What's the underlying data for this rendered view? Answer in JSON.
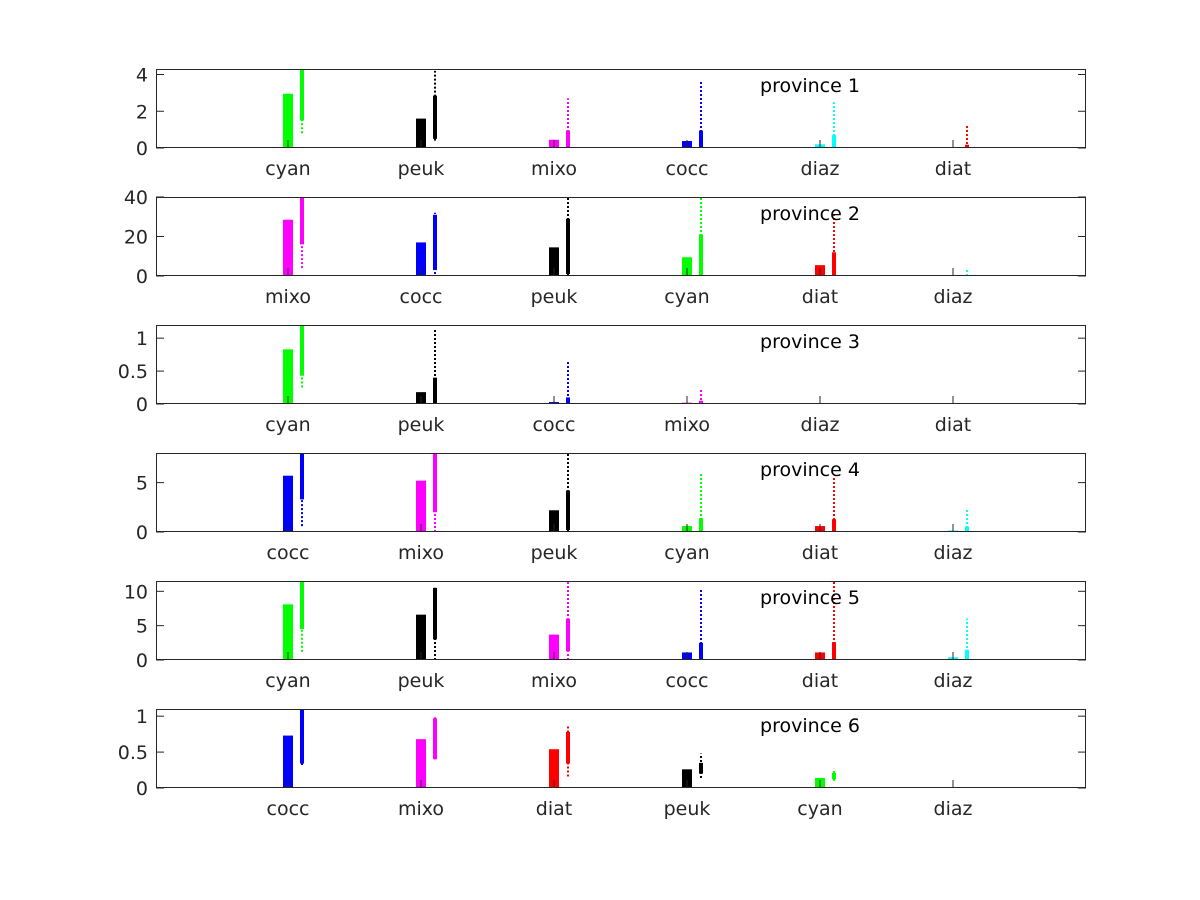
{
  "colors": {
    "cocc": "#0000ff",
    "mixo": "#ff00ff",
    "peuk": "#000000",
    "cyan": "#00ff00",
    "diat": "#ff0000",
    "diaz": "#00ffff"
  },
  "chart_data": [
    {
      "type": "bar",
      "title": "province 1",
      "ylim": [
        0,
        4.3
      ],
      "yticks": [
        "0",
        "2",
        "4"
      ],
      "ytick_values": [
        0,
        2,
        4
      ],
      "categories": [
        "cyan",
        "peuk",
        "mixo",
        "cocc",
        "diaz",
        "diat"
      ],
      "values": [
        2.95,
        1.6,
        0.45,
        0.38,
        0.2,
        0.04
      ],
      "ranges": [
        {
          "mean": 4.3,
          "q_low": 1.5,
          "q_high": 4.3,
          "min": 0.8,
          "max": 4.3
        },
        {
          "mean": 2.85,
          "q_low": 0.5,
          "q_high": 2.85,
          "min": 0.4,
          "max": 4.2
        },
        {
          "mean": 0.95,
          "q_low": 0.05,
          "q_high": 0.95,
          "min": 0.0,
          "max": 2.7
        },
        {
          "mean": 0.95,
          "q_low": 0.05,
          "q_high": 0.95,
          "min": 0.0,
          "max": 3.6
        },
        {
          "mean": 0.7,
          "q_low": 0.05,
          "q_high": 0.7,
          "min": 0.0,
          "max": 2.5
        },
        {
          "mean": 0.18,
          "q_low": 0.01,
          "q_high": 0.18,
          "min": 0.0,
          "max": 1.2
        }
      ]
    },
    {
      "type": "bar",
      "title": "province 2",
      "ylim": [
        0,
        40
      ],
      "yticks": [
        "0",
        "20",
        "40"
      ],
      "ytick_values": [
        0,
        20,
        40
      ],
      "categories": [
        "mixo",
        "cocc",
        "peuk",
        "cyan",
        "diat",
        "diaz"
      ],
      "values": [
        28.5,
        17,
        14.5,
        9.5,
        5.5,
        0.2
      ],
      "ranges": [
        {
          "mean": 40,
          "q_low": 16,
          "q_high": 40,
          "min": 4,
          "max": 40
        },
        {
          "mean": 31,
          "q_low": 3,
          "q_high": 31,
          "min": 1,
          "max": 32
        },
        {
          "mean": 29,
          "q_low": 1,
          "q_high": 29,
          "min": 0,
          "max": 40
        },
        {
          "mean": 21,
          "q_low": 0.5,
          "q_high": 21,
          "min": 0,
          "max": 40
        },
        {
          "mean": 12,
          "q_low": 0.3,
          "q_high": 12,
          "min": 0,
          "max": 31
        },
        {
          "mean": 0.5,
          "q_low": 0.05,
          "q_high": 0.5,
          "min": 0,
          "max": 3.5
        }
      ]
    },
    {
      "type": "bar",
      "title": "province 3",
      "ylim": [
        0,
        1.2
      ],
      "yticks": [
        "0",
        "0.5",
        "1"
      ],
      "ytick_values": [
        0,
        0.5,
        1
      ],
      "categories": [
        "cyan",
        "peuk",
        "cocc",
        "mixo",
        "diaz",
        "diat"
      ],
      "values": [
        0.83,
        0.18,
        0.03,
        0.02,
        0.0,
        0.0
      ],
      "ranges": [
        {
          "mean": 1.2,
          "q_low": 0.43,
          "q_high": 1.2,
          "min": 0.25,
          "max": 1.2
        },
        {
          "mean": 0.4,
          "q_low": 0.01,
          "q_high": 0.4,
          "min": 0.0,
          "max": 1.15
        },
        {
          "mean": 0.1,
          "q_low": 0.0,
          "q_high": 0.1,
          "min": 0.0,
          "max": 0.65
        },
        {
          "mean": 0.05,
          "q_low": 0.0,
          "q_high": 0.05,
          "min": 0.0,
          "max": 0.22
        },
        {
          "mean": 0.0,
          "q_low": 0.0,
          "q_high": 0.0,
          "min": 0.0,
          "max": 0.0
        },
        {
          "mean": 0.0,
          "q_low": 0.0,
          "q_high": 0.0,
          "min": 0.0,
          "max": 0.0
        }
      ]
    },
    {
      "type": "bar",
      "title": "province 4",
      "ylim": [
        0,
        8
      ],
      "yticks": [
        "0",
        "5"
      ],
      "ytick_values": [
        0,
        5
      ],
      "categories": [
        "cocc",
        "mixo",
        "peuk",
        "cyan",
        "diat",
        "diaz"
      ],
      "values": [
        5.7,
        5.2,
        2.2,
        0.6,
        0.6,
        0.15
      ],
      "ranges": [
        {
          "mean": 8,
          "q_low": 3.3,
          "q_high": 8,
          "min": 0.6,
          "max": 8
        },
        {
          "mean": 8,
          "q_low": 2.0,
          "q_high": 8,
          "min": 0.0,
          "max": 8
        },
        {
          "mean": 4.2,
          "q_low": 0.2,
          "q_high": 4.2,
          "min": 0.0,
          "max": 8
        },
        {
          "mean": 1.4,
          "q_low": 0.0,
          "q_high": 1.4,
          "min": 0.0,
          "max": 6.0
        },
        {
          "mean": 1.3,
          "q_low": 0.0,
          "q_high": 1.3,
          "min": 0.0,
          "max": 5.6
        },
        {
          "mean": 0.55,
          "q_low": 0.0,
          "q_high": 0.55,
          "min": 0.0,
          "max": 2.3
        }
      ]
    },
    {
      "type": "bar",
      "title": "province 5",
      "ylim": [
        0,
        11.5
      ],
      "yticks": [
        "0",
        "5",
        "10"
      ],
      "ytick_values": [
        0,
        5,
        10
      ],
      "categories": [
        "cyan",
        "peuk",
        "mixo",
        "cocc",
        "diat",
        "diaz"
      ],
      "values": [
        8.1,
        6.6,
        3.7,
        1.1,
        1.1,
        0.4
      ],
      "ranges": [
        {
          "mean": 11.5,
          "q_low": 4.5,
          "q_high": 11.5,
          "min": 1.2,
          "max": 11.5
        },
        {
          "mean": 10.5,
          "q_low": 3.0,
          "q_high": 10.5,
          "min": 0.0,
          "max": 10.5
        },
        {
          "mean": 6.0,
          "q_low": 1.3,
          "q_high": 6.0,
          "min": 0.0,
          "max": 11.5
        },
        {
          "mean": 2.5,
          "q_low": 0.1,
          "q_high": 2.5,
          "min": 0.0,
          "max": 10.2
        },
        {
          "mean": 2.6,
          "q_low": 0.1,
          "q_high": 2.6,
          "min": 0.0,
          "max": 11.5
        },
        {
          "mean": 1.5,
          "q_low": 0.0,
          "q_high": 1.5,
          "min": 0.0,
          "max": 6.0
        }
      ]
    },
    {
      "type": "bar",
      "title": "province 6",
      "ylim": [
        0,
        1.1
      ],
      "yticks": [
        "0",
        "0.5",
        "1"
      ],
      "ytick_values": [
        0,
        0.5,
        1
      ],
      "categories": [
        "cocc",
        "mixo",
        "diat",
        "peuk",
        "cyan",
        "diaz"
      ],
      "values": [
        0.73,
        0.68,
        0.54,
        0.26,
        0.14,
        0.0
      ],
      "ranges": [
        {
          "mean": 1.1,
          "q_low": 0.34,
          "q_high": 1.1,
          "min": 0.32,
          "max": 1.1
        },
        {
          "mean": 0.97,
          "q_low": 0.4,
          "q_high": 0.97,
          "min": 0.4,
          "max": 1.0
        },
        {
          "mean": 0.78,
          "q_low": 0.34,
          "q_high": 0.78,
          "min": 0.16,
          "max": 0.86
        },
        {
          "mean": 0.35,
          "q_low": 0.2,
          "q_high": 0.35,
          "min": 0.14,
          "max": 0.48
        },
        {
          "mean": 0.21,
          "q_low": 0.12,
          "q_high": 0.21,
          "min": 0.1,
          "max": 0.27
        },
        {
          "mean": 0.0,
          "q_low": 0.0,
          "q_high": 0.0,
          "min": 0.0,
          "max": 0.0
        }
      ]
    }
  ]
}
